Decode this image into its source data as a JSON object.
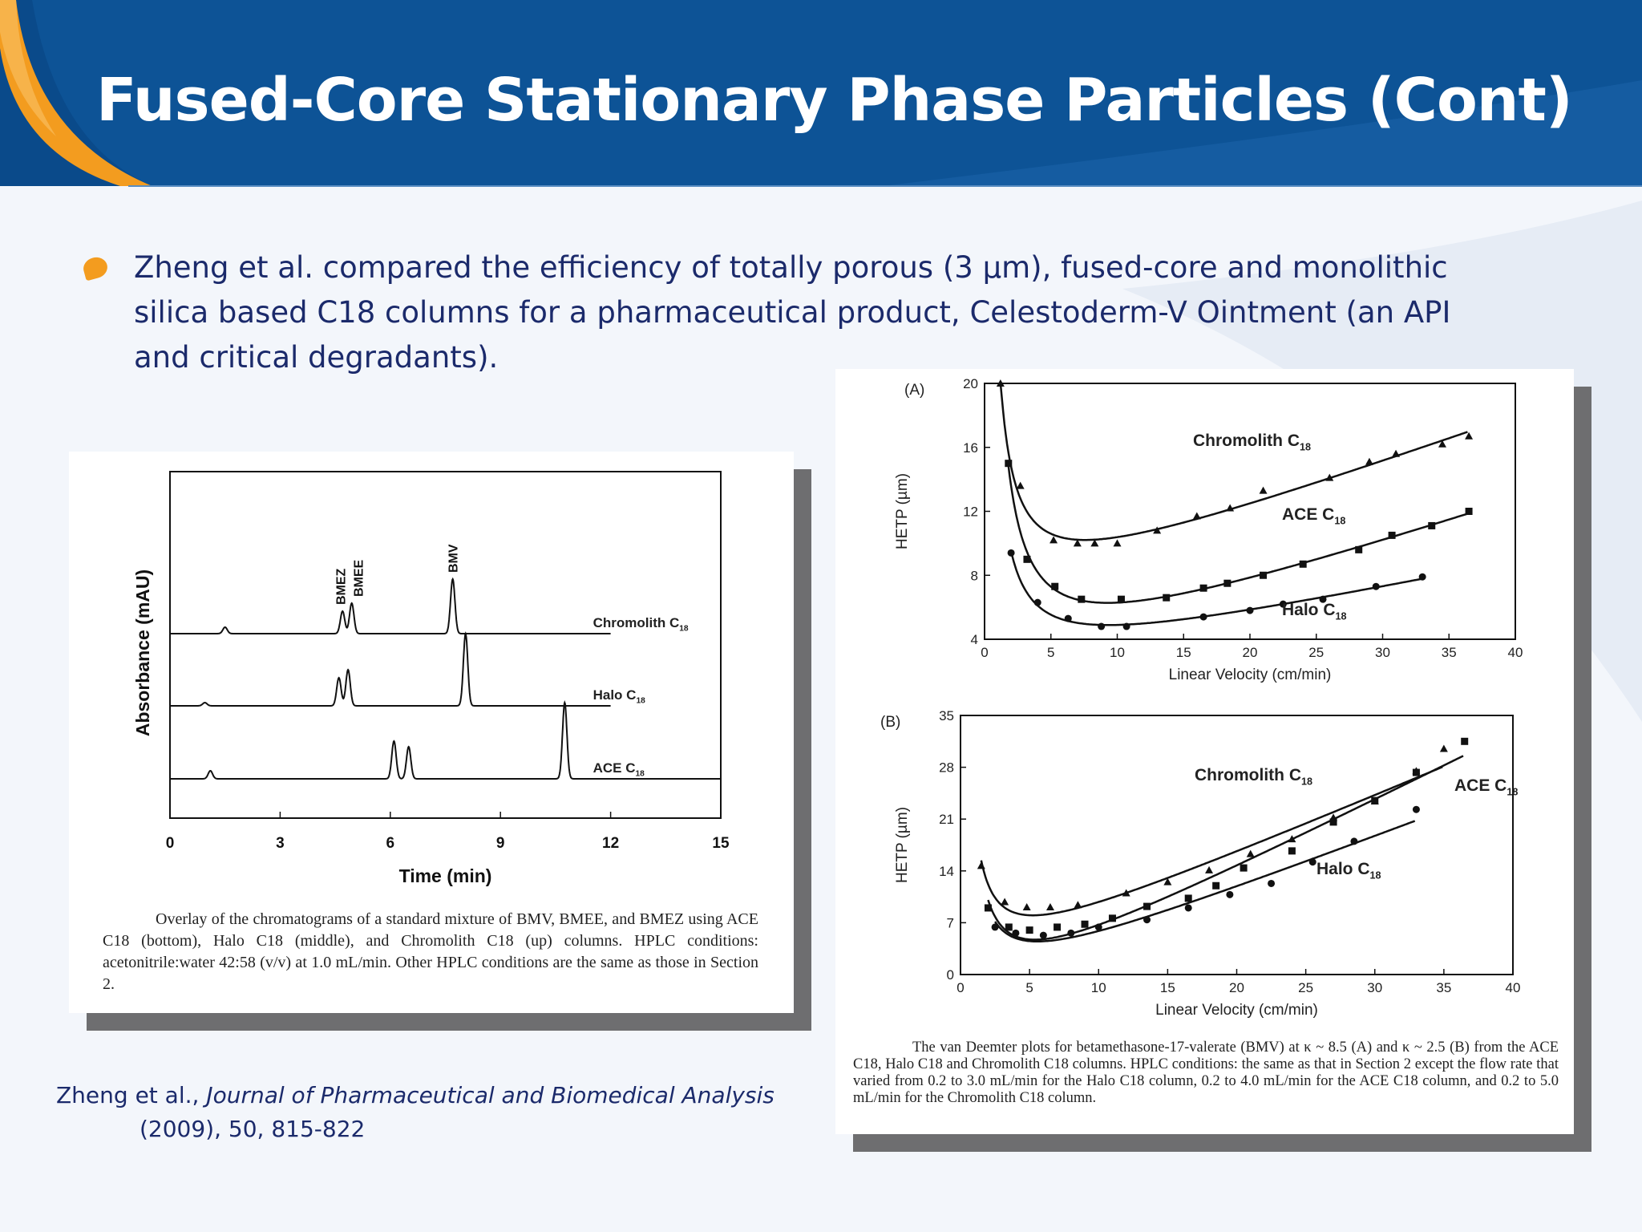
{
  "slide": {
    "title": "Fused-Core Stationary Phase Particles (Cont)",
    "bullet": "Zheng et al. compared the efficiency of totally porous (3 µm), fused-core and monolithic silica based C18 columns for a pharmaceutical product, Celestoderm-V Ointment (an API and critical degradants).",
    "citation": {
      "authors": "Zheng et al., ",
      "journal": "Journal of Pharmaceutical and Biomedical Analysis",
      "details": "(2009), 50, 815-822"
    },
    "colors": {
      "header": "#0d4f8f",
      "accent": "#f39c1f",
      "text": "#1b2a6b"
    }
  },
  "figure1": {
    "caption": "Overlay of the chromatograms of a standard mixture of BMV, BMEE, and BMEZ using ACE C18 (bottom), Halo C18 (middle), and Chromolith C18 (up) columns. HPLC conditions: acetonitrile:water 42:58 (v/v) at 1.0 mL/min. Other HPLC conditions are the same as those in Section 2."
  },
  "figure2": {
    "caption": "The van Deemter plots for betamethasone-17-valerate (BMV) at κ ~ 8.5 (A) and κ ~ 2.5 (B) from the ACE C18, Halo C18 and Chromolith C18 columns. HPLC conditions: the same as that in Section 2 except the flow rate that varied from 0.2 to 3.0 mL/min for the Halo C18 column, 0.2 to 4.0 mL/min for the ACE C18 column, and 0.2 to 5.0 mL/min for the Chromolith C18 column."
  },
  "chart_data": [
    {
      "type": "line",
      "xlabel": "Time (min)",
      "ylabel": "Absorbance (mAU)",
      "xlim": [
        0,
        15
      ],
      "xticks": [
        "0",
        "3",
        "6",
        "9",
        "12",
        "15"
      ],
      "peak_labels": [
        "BMEZ",
        "BMEE",
        "BMV"
      ],
      "series": [
        {
          "name": "Chromolith C18",
          "peaks": [
            {
              "t": 1.5,
              "h": 0.08
            },
            {
              "t": 4.7,
              "h": 0.28
            },
            {
              "t": 4.95,
              "h": 0.38
            },
            {
              "t": 7.7,
              "h": 0.68
            }
          ]
        },
        {
          "name": "Halo C18",
          "peaks": [
            {
              "t": 0.95,
              "h": 0.04
            },
            {
              "t": 4.6,
              "h": 0.35
            },
            {
              "t": 4.85,
              "h": 0.45
            },
            {
              "t": 8.05,
              "h": 0.9
            }
          ]
        },
        {
          "name": "ACE C18",
          "peaks": [
            {
              "t": 1.1,
              "h": 0.1
            },
            {
              "t": 6.1,
              "h": 0.47
            },
            {
              "t": 6.5,
              "h": 0.4
            },
            {
              "t": 10.75,
              "h": 0.95
            }
          ]
        }
      ]
    },
    {
      "type": "scatter",
      "panel": "(A)",
      "xlabel": "Linear Velocity (cm/min)",
      "ylabel": "HETP (µm)",
      "xlim": [
        0,
        40
      ],
      "ylim": [
        4,
        20
      ],
      "xticks": [
        "0",
        "5",
        "10",
        "15",
        "20",
        "25",
        "30",
        "35",
        "40"
      ],
      "yticks": [
        "4",
        "8",
        "12",
        "16",
        "20"
      ],
      "series": [
        {
          "name": "Chromolith C18",
          "marker": "triangle",
          "x": [
            1.2,
            2.7,
            5.2,
            7,
            8.3,
            10,
            13,
            16,
            18.5,
            21,
            26,
            29,
            31,
            34.5,
            36.5
          ],
          "y": [
            20,
            13.6,
            10.2,
            10.0,
            10.0,
            10.0,
            10.8,
            11.7,
            12.2,
            13.3,
            14.1,
            15.1,
            15.6,
            16.2,
            16.7
          ],
          "fit": "vanDeemter"
        },
        {
          "name": "ACE C18",
          "marker": "square",
          "x": [
            1.8,
            3.2,
            5.3,
            7.3,
            10.3,
            13.7,
            16.5,
            18.3,
            21,
            24,
            28.2,
            30.7,
            33.7,
            36.5
          ],
          "y": [
            15.0,
            9.0,
            7.3,
            6.5,
            6.5,
            6.6,
            7.2,
            7.5,
            8.0,
            8.7,
            9.6,
            10.5,
            11.1,
            12.0
          ],
          "fit": "vanDeemter"
        },
        {
          "name": "Halo C18",
          "marker": "circle",
          "x": [
            2,
            4,
            6.3,
            8.8,
            10.7,
            16.5,
            20,
            22.5,
            25.5,
            29.5,
            33
          ],
          "y": [
            9.4,
            6.3,
            5.3,
            4.8,
            4.8,
            5.4,
            5.8,
            6.2,
            6.5,
            7.3,
            7.9
          ],
          "fit": "vanDeemter"
        }
      ]
    },
    {
      "type": "scatter",
      "panel": "(B)",
      "xlabel": "Linear Velocity (cm/min)",
      "ylabel": "HETP (µm)",
      "xlim": [
        0,
        40
      ],
      "ylim": [
        0,
        35
      ],
      "xticks": [
        "0",
        "5",
        "10",
        "15",
        "20",
        "25",
        "30",
        "35",
        "40"
      ],
      "yticks": [
        "0",
        "7",
        "14",
        "21",
        "28",
        "35"
      ],
      "series": [
        {
          "name": "Chromolith C18",
          "marker": "triangle",
          "x": [
            1.5,
            3.2,
            4.8,
            6.5,
            8.5,
            12,
            15,
            18,
            21,
            24,
            27,
            30,
            33,
            35
          ],
          "y": [
            14.7,
            9.8,
            9.1,
            9.1,
            9.4,
            11.0,
            12.5,
            14.1,
            16.3,
            18.3,
            21.2,
            23.4,
            27.5,
            30.5
          ],
          "fit": "vanDeemter"
        },
        {
          "name": "ACE C18",
          "marker": "square",
          "x": [
            2,
            3.5,
            5,
            7,
            9,
            11,
            13.5,
            16.5,
            18.5,
            20.5,
            24,
            27,
            30,
            33,
            36.5
          ],
          "y": [
            9.0,
            6.4,
            6.0,
            6.4,
            6.8,
            7.6,
            9.2,
            10.3,
            12.0,
            14.4,
            16.7,
            20.6,
            23.5,
            27.3,
            31.5
          ],
          "fit": "vanDeemter"
        },
        {
          "name": "Halo C18",
          "marker": "circle",
          "x": [
            2.5,
            4,
            6,
            8,
            10,
            13.5,
            16.5,
            19.5,
            22.5,
            25.5,
            28.5,
            33
          ],
          "y": [
            6.4,
            5.6,
            5.3,
            5.6,
            6.4,
            7.4,
            9.0,
            10.8,
            12.3,
            15.2,
            18.0,
            22.3
          ],
          "fit": "vanDeemter"
        }
      ]
    }
  ]
}
